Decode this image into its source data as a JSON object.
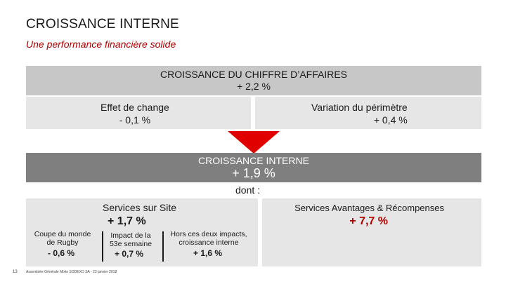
{
  "header": {
    "title": "CROISSANCE INTERNE",
    "subtitle": "Une performance financière solide"
  },
  "revenue_growth": {
    "label": "CROISSANCE DU CHIFFRE D’AFFAIRES",
    "value": "+ 2,2 %"
  },
  "fx_effect": {
    "label": "Effet de change",
    "value": "- 0,1 %"
  },
  "scope_change": {
    "label": "Variation du périmètre",
    "value": "+ 0,4 %"
  },
  "organic_growth": {
    "label": "CROISSANCE INTERNE",
    "value": "+ 1,9 %",
    "dont": "dont :"
  },
  "on_site": {
    "label": "Services sur Site",
    "value": "+ 1,7 %",
    "items": [
      {
        "label_l1": "Coupe du monde",
        "label_l2": "de Rugby",
        "value": "- 0,6 %"
      },
      {
        "label_l1": "Impact de la",
        "label_l2": "53e semaine",
        "value": "+ 0,7 %"
      },
      {
        "label_l1": "Hors ces deux impacts,",
        "label_l2": "croissance interne",
        "value": "+ 1,6 %"
      }
    ]
  },
  "benefits": {
    "label": "Services Avantages & Récompenses",
    "value": "+ 7,7 %"
  },
  "footer": {
    "page_number": "13",
    "text": "Assemblée Générale Mixte SODEXO SA - 23 janvier 2018"
  },
  "colors": {
    "accent": "#b10000",
    "arrow": "#e00000",
    "dark_band": "#7f7f7f",
    "mid_band": "#c7c7c7",
    "light_band": "#e6e6e6"
  }
}
